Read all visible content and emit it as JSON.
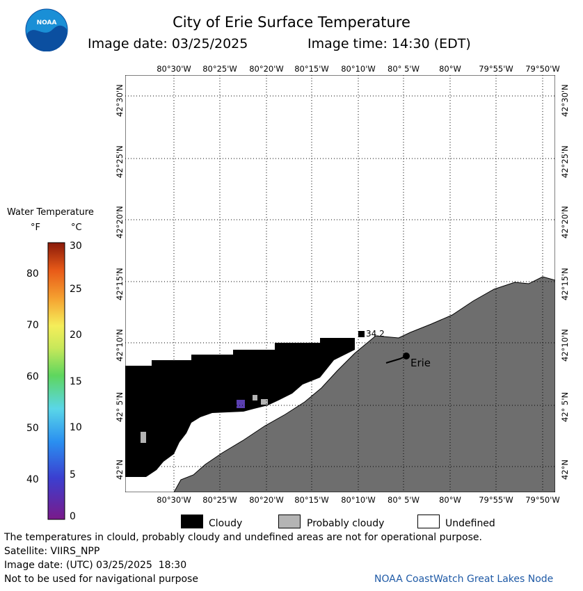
{
  "header": {
    "title": "City of Erie Surface Temperature",
    "image_date_label": "Image date: 03/25/2025",
    "image_time_label": "Image time: 14:30 (EDT)",
    "logo_text": "NOAA"
  },
  "map": {
    "lon_labels": [
      "80°30'W",
      "80°25'W",
      "80°20'W",
      "80°15'W",
      "80°10'W",
      "80° 5'W",
      "80°W",
      "79°55'W",
      "79°50'W"
    ],
    "lat_labels": [
      "42°N",
      "42° 5'N",
      "42°10'N",
      "42°15'N",
      "42°20'N",
      "42°25'N",
      "42°30'N"
    ],
    "annotation_value": "34.2",
    "city_label": "Erie",
    "colors": {
      "land": "#6e6e6e",
      "cloud": "#000000",
      "probably_cloudy": "#b4b4b4",
      "undefined": "#ffffff"
    }
  },
  "legend": {
    "title": "Water Temperature",
    "unit_f": "°F",
    "unit_c": "°C",
    "f_ticks": [
      "80",
      "70",
      "60",
      "50",
      "40"
    ],
    "c_ticks": [
      "30",
      "25",
      "20",
      "15",
      "10",
      "5",
      "0"
    ],
    "categories": [
      "Cloudy",
      "Probably cloudy",
      "Undefined"
    ]
  },
  "footer": {
    "line1": "The temperatures in clould, probably cloudy and undefined areas are not for operational purpose.",
    "line2": "Satellite: VIIRS_NPP",
    "line3": "Image date: (UTC) 03/25/2025  18:30",
    "line4": "Not to be used for navigational purpose",
    "credit": "NOAA CoastWatch Great Lakes Node"
  }
}
